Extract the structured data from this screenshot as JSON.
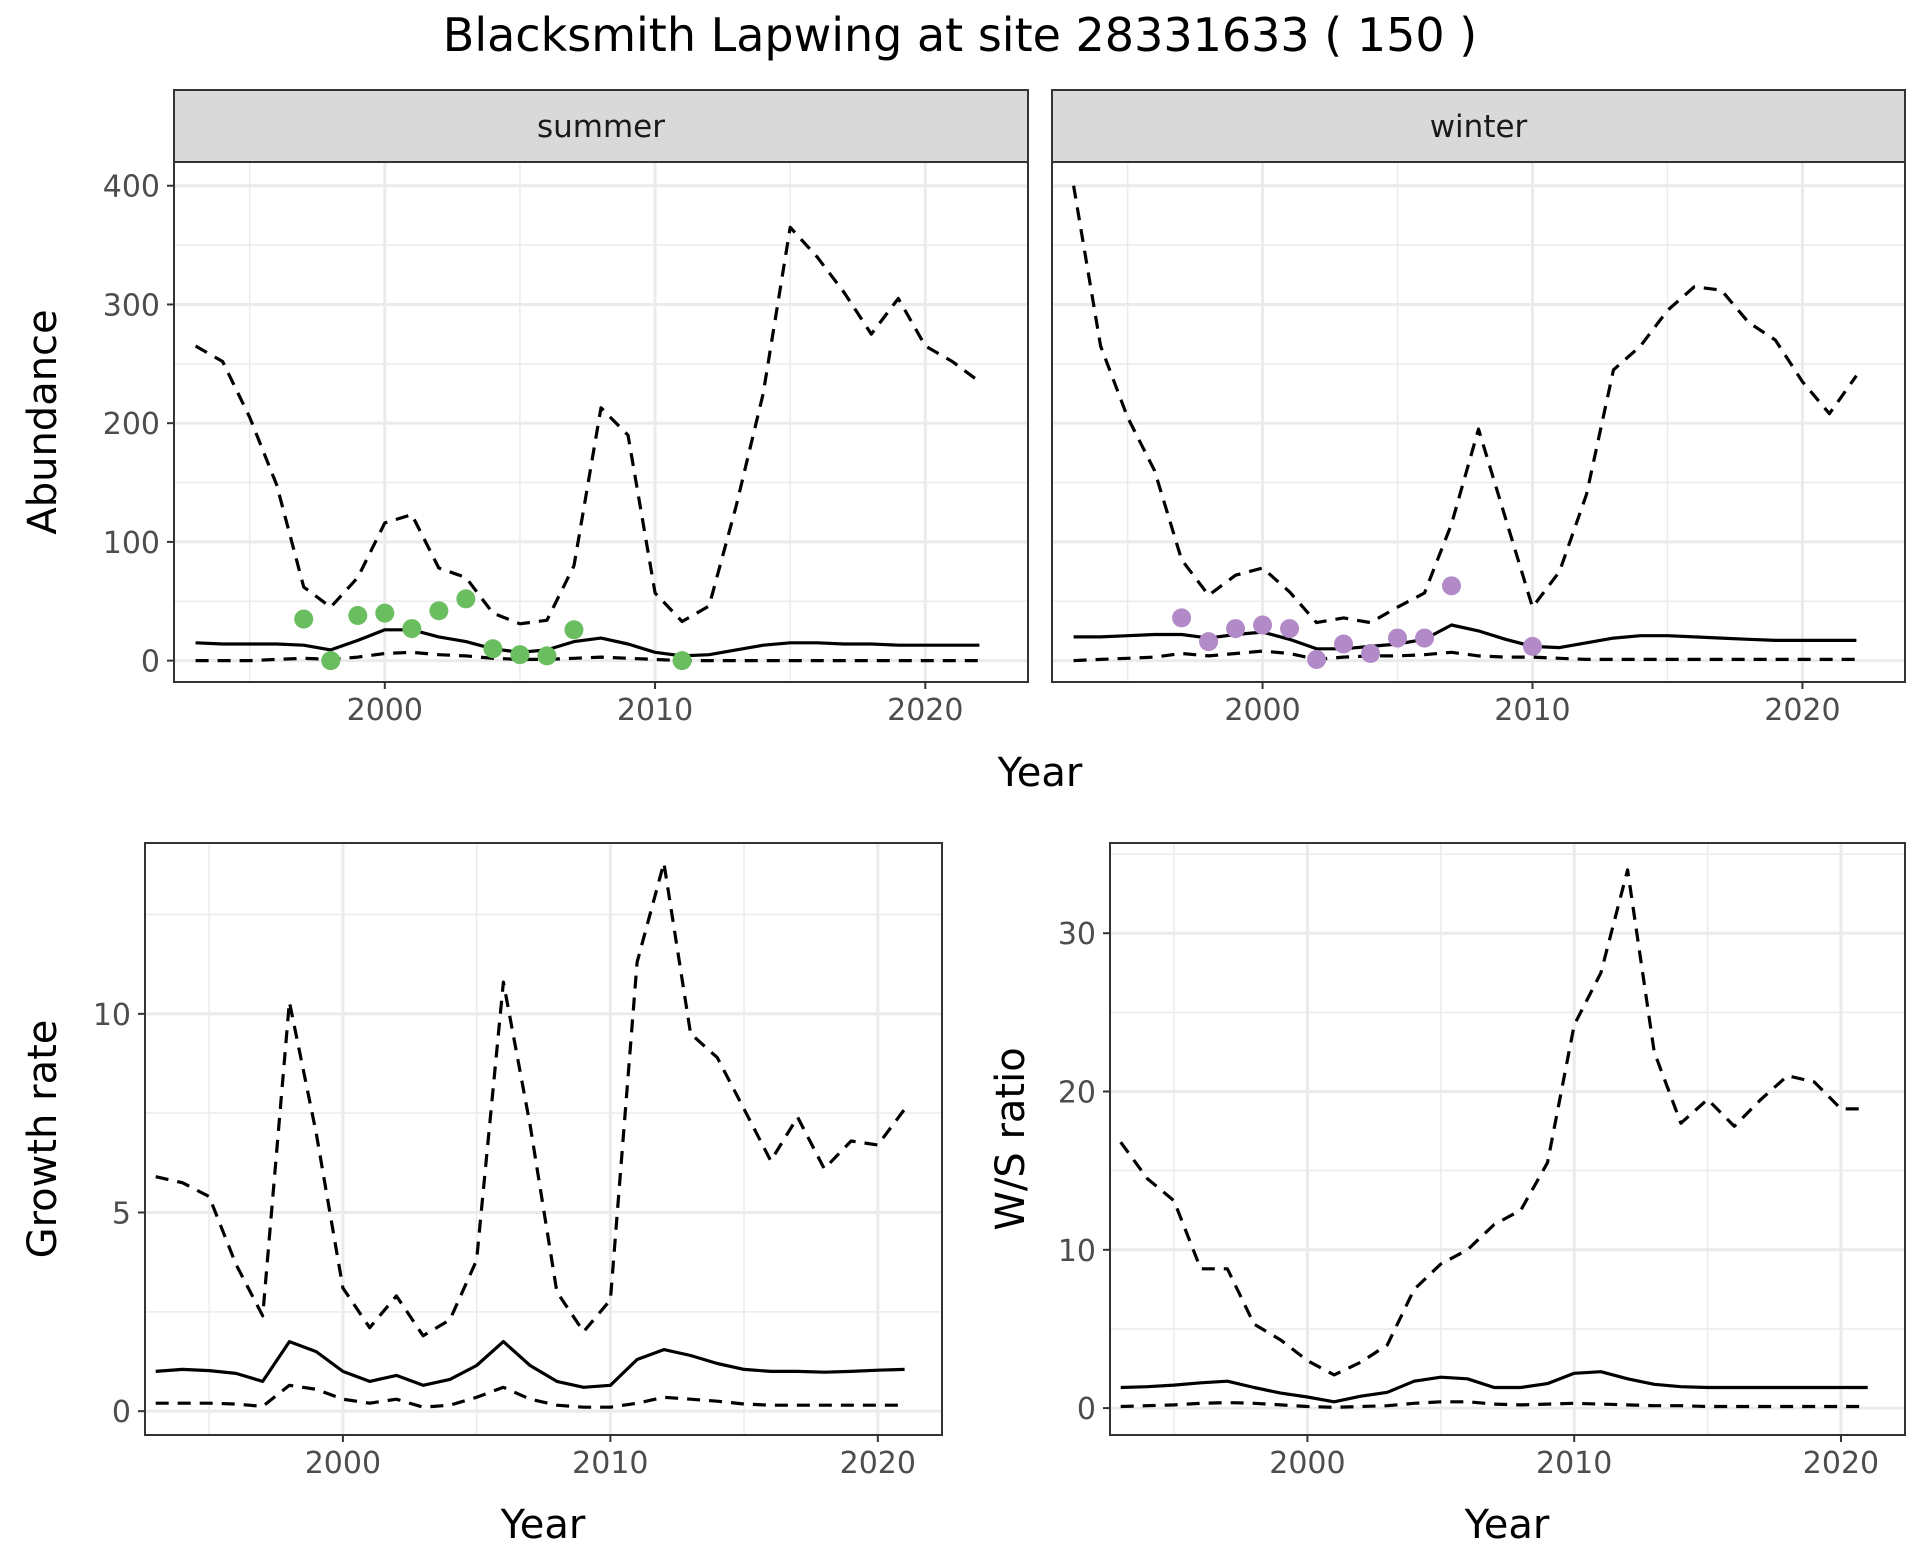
{
  "title": "Blacksmith Lapwing at site 28331633 ( 150 )",
  "colors": {
    "summer_points": "#6abe5f",
    "winter_points": "#b28ac7",
    "lines": "#000000",
    "grid": "#ebebeb",
    "strip": "#d9d9d9"
  },
  "chart_data": [
    {
      "id": "abundance-summer",
      "type": "line",
      "facet": "summer",
      "xlabel": "Year",
      "ylabel": "Abundance",
      "xlim": [
        1992.2,
        2023.8
      ],
      "ylim": [
        -18,
        420
      ],
      "xticks": [
        2000,
        2010,
        2020
      ],
      "yticks": [
        0,
        100,
        200,
        300,
        400
      ],
      "x": [
        1993,
        1994,
        1995,
        1996,
        1997,
        1998,
        1999,
        2000,
        2001,
        2002,
        2003,
        2004,
        2005,
        2006,
        2007,
        2008,
        2009,
        2010,
        2011,
        2012,
        2013,
        2014,
        2015,
        2016,
        2017,
        2018,
        2019,
        2020,
        2021,
        2022
      ],
      "series": [
        {
          "role": "estimate",
          "dash": "solid",
          "values": [
            15,
            14,
            14,
            14,
            13,
            9,
            17,
            26,
            26,
            20,
            16,
            10,
            7,
            9,
            16,
            19,
            14,
            7,
            4,
            5,
            9,
            13,
            15,
            15,
            14,
            14,
            13,
            13,
            13,
            13
          ]
        },
        {
          "role": "upper",
          "dash": "dashed",
          "values": [
            265,
            252,
            205,
            148,
            62,
            45,
            70,
            116,
            123,
            78,
            70,
            40,
            31,
            34,
            80,
            213,
            190,
            57,
            33,
            46,
            130,
            225,
            365,
            340,
            310,
            275,
            305,
            265,
            252,
            235
          ]
        },
        {
          "role": "lower",
          "dash": "dashed",
          "values": [
            0,
            0,
            0,
            1,
            2,
            1,
            3,
            6,
            7,
            5,
            4,
            2,
            1,
            1,
            2,
            3,
            2,
            1,
            0,
            0,
            0,
            0,
            0,
            0,
            0,
            0,
            0,
            0,
            0,
            0
          ]
        }
      ],
      "points": {
        "x": [
          1997,
          1998,
          1999,
          2000,
          2001,
          2002,
          2003,
          2004,
          2005,
          2006,
          2007,
          2011
        ],
        "y": [
          35,
          0,
          38,
          40,
          27,
          42,
          52,
          10,
          5,
          4,
          26,
          0
        ]
      }
    },
    {
      "id": "abundance-winter",
      "type": "line",
      "facet": "winter",
      "xlabel": "Year",
      "ylabel": "",
      "xlim": [
        1992.2,
        2023.8
      ],
      "ylim": [
        -18,
        420
      ],
      "xticks": [
        2000,
        2010,
        2020
      ],
      "yticks": [],
      "x": [
        1993,
        1994,
        1995,
        1996,
        1997,
        1998,
        1999,
        2000,
        2001,
        2002,
        2003,
        2004,
        2005,
        2006,
        2007,
        2008,
        2009,
        2010,
        2011,
        2012,
        2013,
        2014,
        2015,
        2016,
        2017,
        2018,
        2019,
        2020,
        2021,
        2022
      ],
      "series": [
        {
          "role": "estimate",
          "dash": "solid",
          "values": [
            20,
            20,
            21,
            22,
            22,
            19,
            22,
            24,
            18,
            10,
            10,
            12,
            14,
            18,
            30,
            25,
            18,
            12,
            11,
            15,
            19,
            21,
            21,
            20,
            19,
            18,
            17,
            17,
            17,
            17
          ]
        },
        {
          "role": "upper",
          "dash": "dashed",
          "values": [
            400,
            265,
            205,
            160,
            85,
            55,
            72,
            78,
            58,
            32,
            36,
            32,
            45,
            57,
            115,
            195,
            120,
            45,
            75,
            140,
            245,
            265,
            295,
            315,
            312,
            285,
            270,
            235,
            208,
            240
          ]
        },
        {
          "role": "lower",
          "dash": "dashed",
          "values": [
            0,
            1,
            2,
            3,
            6,
            4,
            6,
            8,
            6,
            1,
            3,
            4,
            4,
            5,
            7,
            4,
            3,
            3,
            2,
            1,
            1,
            1,
            1,
            1,
            1,
            1,
            1,
            1,
            1,
            1
          ]
        }
      ],
      "points": {
        "x": [
          1997,
          1998,
          1999,
          2000,
          2001,
          2002,
          2003,
          2004,
          2005,
          2006,
          2007,
          2010
        ],
        "y": [
          36,
          16,
          27,
          30,
          27,
          1,
          14,
          6,
          19,
          19,
          63,
          12
        ]
      }
    },
    {
      "id": "growth-rate",
      "type": "line",
      "xlabel": "Year",
      "ylabel": "Growth rate",
      "xlim": [
        1992.6,
        2022.4
      ],
      "ylim": [
        -0.6,
        14.3
      ],
      "xticks": [
        2000,
        2010,
        2020
      ],
      "yticks": [
        0,
        5,
        10
      ],
      "x": [
        1993,
        1994,
        1995,
        1996,
        1997,
        1998,
        1999,
        2000,
        2001,
        2002,
        2003,
        2004,
        2005,
        2006,
        2007,
        2008,
        2009,
        2010,
        2011,
        2012,
        2013,
        2014,
        2015,
        2016,
        2017,
        2018,
        2019,
        2020,
        2021
      ],
      "series": [
        {
          "role": "estimate",
          "dash": "solid",
          "values": [
            1.0,
            1.05,
            1.02,
            0.95,
            0.75,
            1.75,
            1.5,
            1.0,
            0.75,
            0.9,
            0.65,
            0.8,
            1.15,
            1.75,
            1.15,
            0.75,
            0.6,
            0.65,
            1.3,
            1.55,
            1.4,
            1.2,
            1.05,
            1.0,
            1.0,
            0.98,
            1.0,
            1.03,
            1.05
          ]
        },
        {
          "role": "upper",
          "dash": "dashed",
          "values": [
            5.9,
            5.75,
            5.4,
            3.7,
            2.4,
            10.3,
            7.0,
            3.1,
            2.1,
            2.9,
            1.9,
            2.3,
            3.8,
            10.8,
            7.2,
            3.0,
            2.0,
            2.8,
            11.3,
            13.8,
            9.5,
            8.9,
            7.6,
            6.3,
            7.4,
            6.1,
            6.8,
            6.7,
            7.6
          ]
        },
        {
          "role": "lower",
          "dash": "dashed",
          "values": [
            0.2,
            0.2,
            0.2,
            0.18,
            0.12,
            0.65,
            0.55,
            0.3,
            0.2,
            0.3,
            0.1,
            0.15,
            0.35,
            0.6,
            0.3,
            0.15,
            0.1,
            0.1,
            0.2,
            0.35,
            0.3,
            0.25,
            0.18,
            0.15,
            0.15,
            0.15,
            0.15,
            0.15,
            0.15
          ]
        }
      ]
    },
    {
      "id": "ws-ratio",
      "type": "line",
      "xlabel": "Year",
      "ylabel": "W/S ratio",
      "xlim": [
        1992.6,
        2022.4
      ],
      "ylim": [
        -1.7,
        35.7
      ],
      "xticks": [
        2000,
        2010,
        2020
      ],
      "yticks": [
        0,
        10,
        20,
        30
      ],
      "x": [
        1993,
        1994,
        1995,
        1996,
        1997,
        1998,
        1999,
        2000,
        2001,
        2002,
        2003,
        2004,
        2005,
        2006,
        2007,
        2008,
        2009,
        2010,
        2011,
        2012,
        2013,
        2014,
        2015,
        2016,
        2017,
        2018,
        2019,
        2020,
        2021
      ],
      "series": [
        {
          "role": "estimate",
          "dash": "solid",
          "values": [
            1.3,
            1.35,
            1.45,
            1.6,
            1.7,
            1.3,
            0.95,
            0.7,
            0.4,
            0.75,
            1.0,
            1.7,
            1.95,
            1.85,
            1.3,
            1.3,
            1.55,
            2.2,
            2.3,
            1.85,
            1.5,
            1.35,
            1.3,
            1.3,
            1.3,
            1.3,
            1.3,
            1.3,
            1.3
          ]
        },
        {
          "role": "upper",
          "dash": "dashed",
          "values": [
            16.8,
            14.5,
            13.1,
            8.8,
            8.8,
            5.3,
            4.3,
            3.0,
            2.1,
            2.9,
            4.0,
            7.5,
            9.1,
            10.0,
            11.6,
            12.5,
            15.5,
            24.2,
            27.5,
            34.0,
            22.5,
            18.0,
            19.5,
            17.8,
            19.5,
            21.0,
            20.6,
            18.9,
            18.9
          ]
        },
        {
          "role": "lower",
          "dash": "dashed",
          "values": [
            0.1,
            0.15,
            0.2,
            0.3,
            0.35,
            0.3,
            0.2,
            0.1,
            0.05,
            0.1,
            0.15,
            0.3,
            0.4,
            0.4,
            0.25,
            0.2,
            0.25,
            0.3,
            0.25,
            0.2,
            0.15,
            0.15,
            0.1,
            0.1,
            0.1,
            0.1,
            0.1,
            0.1,
            0.1
          ]
        }
      ]
    }
  ]
}
